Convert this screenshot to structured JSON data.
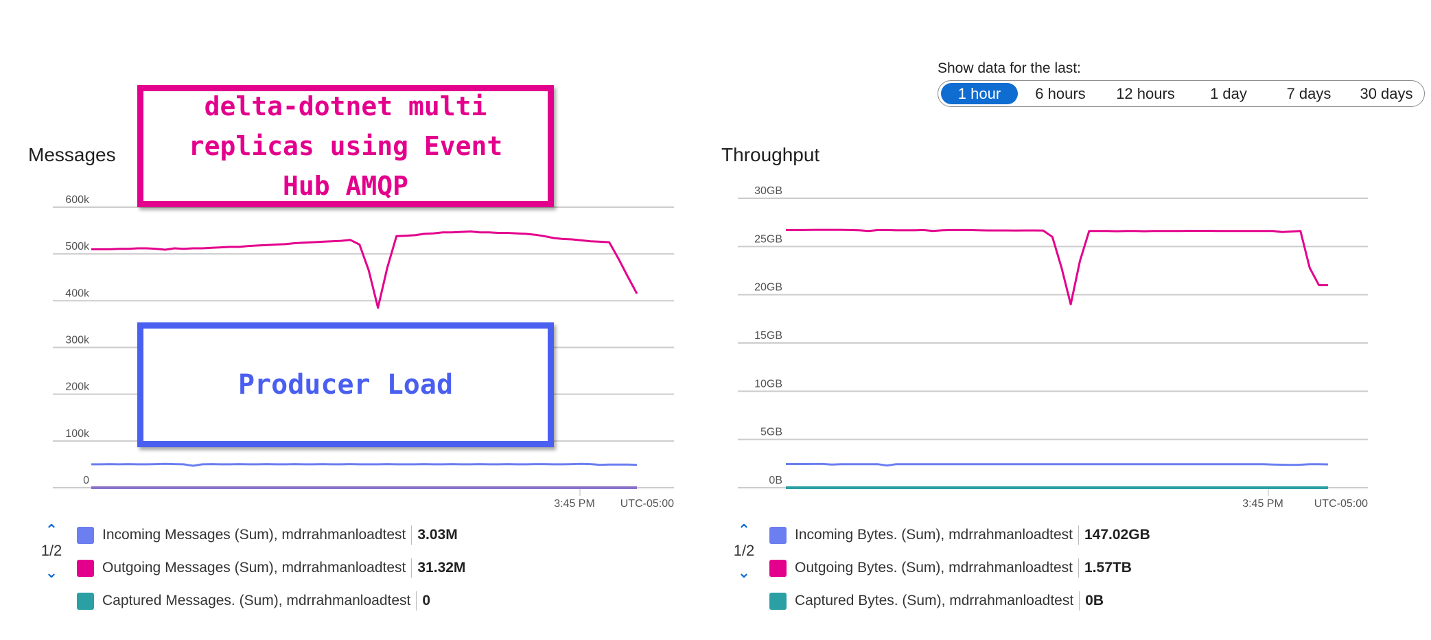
{
  "time_range": {
    "label": "Show data for the last:",
    "options": [
      "1 hour",
      "6 hours",
      "12 hours",
      "1 day",
      "7 days",
      "30 days"
    ],
    "selected": "1 hour"
  },
  "annotations": {
    "top": "delta-dotnet multi replicas using Event Hub AMQP",
    "bottom": "Producer Load"
  },
  "colors": {
    "incoming": "#6b7ff0",
    "outgoing": "#e3008c",
    "captured": "#2aa0a4",
    "accent": "#0f6cd1",
    "grid": "#cccccc"
  },
  "chart_data": [
    {
      "type": "line",
      "title": "Messages",
      "yticks": [
        "0",
        "100k",
        "200k",
        "300k",
        "400k",
        "500k",
        "600k"
      ],
      "ylim": [
        0,
        600000
      ],
      "x_tick_label": "3:45 PM",
      "timezone": "UTC-05:00",
      "pager": "1/2",
      "series": [
        {
          "name": "Incoming Messages (Sum), mdrrahmanloadtest",
          "total": "3.03M",
          "color": "incoming",
          "values": [
            50000,
            50000,
            50500,
            50000,
            50500,
            50000,
            50000,
            50500,
            51000,
            50500,
            50000,
            47000,
            50000,
            50500,
            50000,
            50000,
            50500,
            50000,
            50000,
            50500,
            50000,
            50000,
            50500,
            50000,
            50000,
            50500,
            50000,
            50000,
            50500,
            50000,
            50000,
            50000,
            50500,
            50000,
            50000,
            50000,
            50500,
            50000,
            50000,
            50500,
            50000,
            50000,
            50500,
            50000,
            50000,
            50500,
            50000,
            50000,
            50500,
            50500,
            50000,
            50000,
            50500,
            51000,
            50500,
            49000,
            49500,
            49500,
            49500,
            49000
          ]
        },
        {
          "name": "Outgoing Messages (Sum), mdrrahmanloadtest",
          "total": "31.32M",
          "color": "outgoing",
          "values": [
            510000,
            510000,
            510000,
            511000,
            511000,
            512000,
            512000,
            511000,
            509000,
            512000,
            511000,
            512000,
            512000,
            513000,
            514000,
            515000,
            515000,
            517000,
            518000,
            519000,
            520000,
            521000,
            523000,
            524000,
            525000,
            526000,
            527000,
            528000,
            530000,
            520000,
            465000,
            385000,
            470000,
            538000,
            539000,
            540000,
            543000,
            544000,
            546000,
            546000,
            547000,
            548000,
            546000,
            546000,
            545000,
            545000,
            544000,
            543000,
            541000,
            538000,
            534000,
            532000,
            531000,
            529000,
            527000,
            526000,
            525000,
            490000,
            452000,
            415000
          ]
        },
        {
          "name": "Captured Messages. (Sum), mdrrahmanloadtest",
          "total": "0",
          "color": "captured",
          "values": [
            0,
            0,
            0,
            0,
            0,
            0,
            0,
            0,
            0,
            0,
            0,
            0,
            0,
            0,
            0,
            0,
            0,
            0,
            0,
            0,
            0,
            0,
            0,
            0,
            0,
            0,
            0,
            0,
            0,
            0,
            0,
            0,
            0,
            0,
            0,
            0,
            0,
            0,
            0,
            0,
            0,
            0,
            0,
            0,
            0,
            0,
            0,
            0,
            0,
            0,
            0,
            0,
            0,
            0,
            0,
            0,
            0,
            0,
            0,
            0
          ]
        }
      ]
    },
    {
      "type": "line",
      "title": "Throughput",
      "yticks": [
        "0B",
        "5GB",
        "10GB",
        "15GB",
        "20GB",
        "25GB",
        "30GB"
      ],
      "ylim": [
        0,
        30
      ],
      "yunit": "GB",
      "x_tick_label": "3:45 PM",
      "timezone": "UTC-05:00",
      "pager": "1/2",
      "series": [
        {
          "name": "Incoming Bytes. (Sum), mdrrahmanloadtest",
          "total": "147.02GB",
          "color": "incoming",
          "values": [
            2.45,
            2.45,
            2.45,
            2.46,
            2.46,
            2.4,
            2.44,
            2.44,
            2.43,
            2.44,
            2.44,
            2.3,
            2.44,
            2.44,
            2.43,
            2.44,
            2.43,
            2.44,
            2.44,
            2.44,
            2.43,
            2.44,
            2.44,
            2.43,
            2.44,
            2.44,
            2.43,
            2.44,
            2.44,
            2.44,
            2.43,
            2.44,
            2.44,
            2.44,
            2.43,
            2.44,
            2.44,
            2.44,
            2.43,
            2.44,
            2.44,
            2.44,
            2.43,
            2.44,
            2.44,
            2.44,
            2.43,
            2.44,
            2.44,
            2.43,
            2.44,
            2.44,
            2.44,
            2.4,
            2.38,
            2.37,
            2.38,
            2.44,
            2.44,
            2.42
          ]
        },
        {
          "name": "Outgoing Bytes. (Sum), mdrrahmanloadtest",
          "total": "1.57TB",
          "color": "outgoing",
          "values": [
            26.7,
            26.7,
            26.7,
            26.72,
            26.72,
            26.72,
            26.72,
            26.7,
            26.68,
            26.6,
            26.7,
            26.7,
            26.68,
            26.68,
            26.68,
            26.7,
            26.6,
            26.68,
            26.7,
            26.7,
            26.7,
            26.68,
            26.66,
            26.66,
            26.66,
            26.65,
            26.66,
            26.66,
            26.65,
            26.0,
            22.8,
            19.0,
            23.5,
            26.6,
            26.6,
            26.6,
            26.58,
            26.6,
            26.6,
            26.58,
            26.6,
            26.6,
            26.6,
            26.6,
            26.62,
            26.62,
            26.62,
            26.6,
            26.6,
            26.6,
            26.6,
            26.6,
            26.6,
            26.6,
            26.5,
            26.55,
            26.6,
            22.8,
            21.0,
            21.0
          ]
        },
        {
          "name": "Captured Bytes. (Sum), mdrrahmanloadtest",
          "total": "0B",
          "color": "captured",
          "values": [
            0,
            0,
            0,
            0,
            0,
            0,
            0,
            0,
            0,
            0,
            0,
            0,
            0,
            0,
            0,
            0,
            0,
            0,
            0,
            0,
            0,
            0,
            0,
            0,
            0,
            0,
            0,
            0,
            0,
            0,
            0,
            0,
            0,
            0,
            0,
            0,
            0,
            0,
            0,
            0,
            0,
            0,
            0,
            0,
            0,
            0,
            0,
            0,
            0,
            0,
            0,
            0,
            0,
            0,
            0,
            0,
            0,
            0,
            0,
            0
          ]
        }
      ]
    }
  ]
}
